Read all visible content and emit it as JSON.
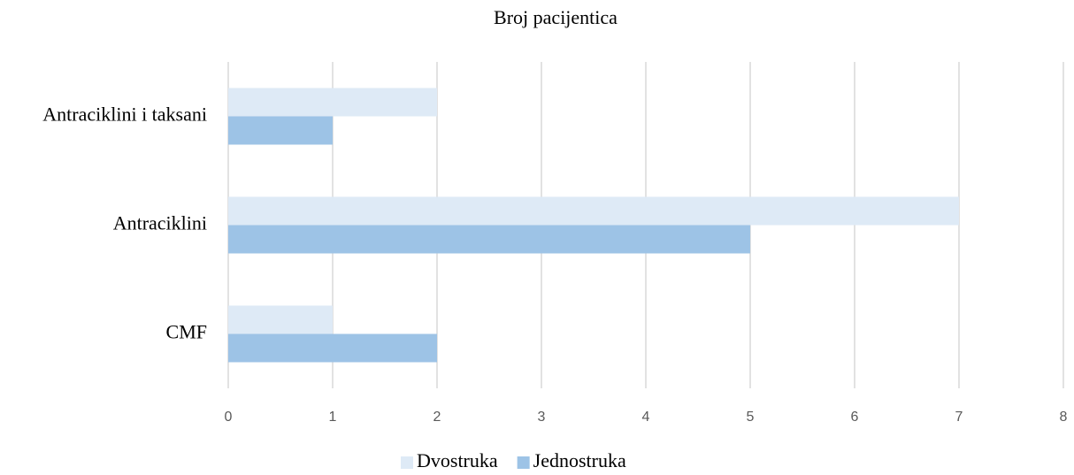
{
  "chart_data": {
    "type": "hbar",
    "title": "Broj pacijentica",
    "categories": [
      "CMF",
      "Antraciklini",
      "Antraciklini i taksani"
    ],
    "series": [
      {
        "name": "Dvostruka",
        "color": "#deeaf6",
        "values": [
          1,
          7,
          2
        ]
      },
      {
        "name": "Jednostruka",
        "color": "#9dc3e6",
        "values": [
          2,
          5,
          1
        ]
      }
    ],
    "xlim": [
      0,
      8
    ],
    "xticks": [
      0,
      1,
      2,
      3,
      4,
      5,
      6,
      7,
      8
    ],
    "grid": true,
    "legend": "bottom"
  }
}
